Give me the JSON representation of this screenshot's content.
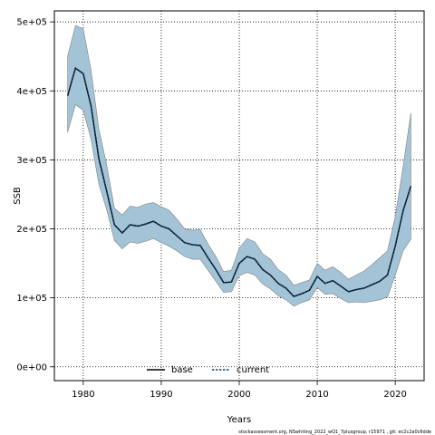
{
  "chart_data": {
    "type": "area",
    "xlabel": "Years",
    "ylabel": "SSB",
    "xlim": [
      1976.3,
      2023.7
    ],
    "ylim": [
      -20000,
      516000
    ],
    "x_ticks": [
      1980,
      1990,
      2000,
      2010,
      2020
    ],
    "y_ticks": [
      0,
      100000,
      200000,
      300000,
      400000,
      500000
    ],
    "x_tick_labels": [
      "1980",
      "1990",
      "2000",
      "2010",
      "2020"
    ],
    "y_tick_labels": [
      "0e+00",
      "1e+05",
      "2e+05",
      "3e+05",
      "4e+05",
      "5e+05"
    ],
    "grid": true,
    "legend_position": "bottom",
    "colors": {
      "band_fill": "#a3c4d7",
      "band_edge": "#808080",
      "base": "#000000",
      "current": "#1a3a5c"
    },
    "x": [
      1978,
      1979,
      1980,
      1981,
      1982,
      1983,
      1984,
      1985,
      1986,
      1987,
      1988,
      1989,
      1990,
      1991,
      1992,
      1993,
      1994,
      1995,
      1996,
      1997,
      1998,
      1999,
      2000,
      2001,
      2002,
      2003,
      2004,
      2005,
      2006,
      2007,
      2008,
      2009,
      2010,
      2011,
      2012,
      2013,
      2014,
      2015,
      2016,
      2017,
      2018,
      2019,
      2020,
      2021,
      2022
    ],
    "upper": [
      450000,
      495000,
      490000,
      430000,
      345000,
      293000,
      230000,
      220000,
      233000,
      231000,
      236000,
      238000,
      232000,
      227000,
      214000,
      200000,
      198000,
      199000,
      178000,
      160000,
      138000,
      140000,
      172000,
      186000,
      181000,
      164000,
      156000,
      141000,
      133000,
      118000,
      122000,
      126000,
      150000,
      140000,
      145000,
      137000,
      127000,
      133000,
      139000,
      148000,
      158000,
      168000,
      218000,
      290000,
      368000
    ],
    "lower": [
      340000,
      380000,
      372000,
      330000,
      265000,
      228000,
      183000,
      171000,
      181000,
      179000,
      182000,
      186000,
      180000,
      175000,
      168000,
      160000,
      156000,
      156000,
      140000,
      124000,
      108000,
      109000,
      132000,
      137000,
      133000,
      120000,
      113000,
      103000,
      97000,
      88000,
      93000,
      97000,
      115000,
      105000,
      106000,
      99000,
      93000,
      94000,
      93000,
      95000,
      97000,
      101000,
      133000,
      168000,
      185000
    ],
    "series": [
      {
        "name": "base",
        "values": [
          393000,
          433000,
          425000,
          378000,
          302000,
          255000,
          206000,
          194000,
          206000,
          204000,
          207000,
          211000,
          204000,
          200000,
          190000,
          180000,
          177000,
          176000,
          158000,
          141000,
          122000,
          123000,
          150000,
          160000,
          156000,
          141000,
          133000,
          121000,
          114000,
          102000,
          106000,
          111000,
          131000,
          121000,
          125000,
          117000,
          109000,
          112000,
          114000,
          119000,
          124000,
          133000,
          175000,
          226000,
          262000
        ]
      },
      {
        "name": "current",
        "values": [
          393000,
          433000,
          425000,
          378000,
          302000,
          255000,
          206000,
          194000,
          206000,
          204000,
          207000,
          211000,
          204000,
          200000,
          190000,
          180000,
          177000,
          176000,
          158000,
          141000,
          122000,
          123000,
          150000,
          160000,
          156000,
          141000,
          133000,
          121000,
          114000,
          102000,
          106000,
          111000,
          131000,
          121000,
          125000,
          117000,
          109000,
          112000,
          114000,
          119000,
          124000,
          133000,
          175000,
          226000,
          262000
        ]
      }
    ]
  },
  "caption": "stockassessment.org, NSwhiting_2022_wQ1_7plusgroup, r15971 , git: ec2c2a0c6dde"
}
